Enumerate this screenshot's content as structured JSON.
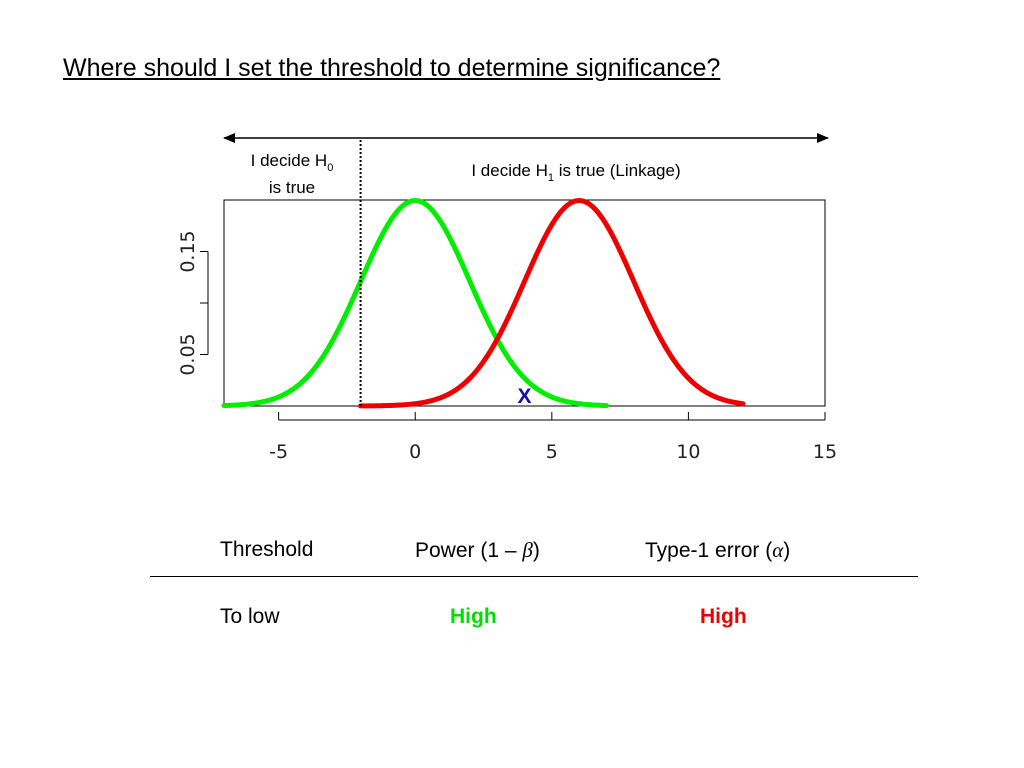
{
  "slide": {
    "title": "Where should I set the threshold to determine significance?"
  },
  "chart_data": {
    "type": "line",
    "title": "",
    "xlabel": "",
    "ylabel": "",
    "xlim": [
      -7,
      15
    ],
    "ylim": [
      0,
      0.2
    ],
    "x_ticks": [
      -5,
      0,
      5,
      10,
      15
    ],
    "x_tick_labels": [
      "-5",
      "0",
      "5",
      "10",
      "15"
    ],
    "y_ticks": [
      0.05,
      0.15
    ],
    "y_tick_labels": [
      "0.05",
      "0.15"
    ],
    "y_ticks_unlabeled": [
      0.1
    ],
    "grid": false,
    "threshold": -2,
    "series": [
      {
        "distribution": "normal",
        "mean": 0,
        "sd": 2,
        "x_range": [
          -7,
          7
        ],
        "color": "#00ee00"
      },
      {
        "distribution": "normal",
        "mean": 6,
        "sd": 2,
        "x_range": [
          -2,
          12
        ],
        "color": "#ee0000"
      }
    ],
    "marker": {
      "label": "X",
      "x": 4,
      "color": "#1010b0"
    },
    "region_labels": {
      "left": {
        "line1": "I decide H",
        "sub1": "0",
        "line2": "is true"
      },
      "right": {
        "pre": "I decide H",
        "sub": "1",
        "post": " is true (Linkage)"
      }
    }
  },
  "table": {
    "headers": {
      "threshold": "Threshold",
      "power_prefix": "Power (1 – ",
      "power_symbol": "β",
      "power_suffix": ")",
      "error_prefix": "Type-1 error (",
      "error_symbol": "α",
      "error_suffix": ")"
    },
    "rows": [
      {
        "threshold": "To low",
        "power": "High",
        "power_color": "#00dd00",
        "error": "High",
        "error_color": "#ee0000"
      }
    ]
  }
}
